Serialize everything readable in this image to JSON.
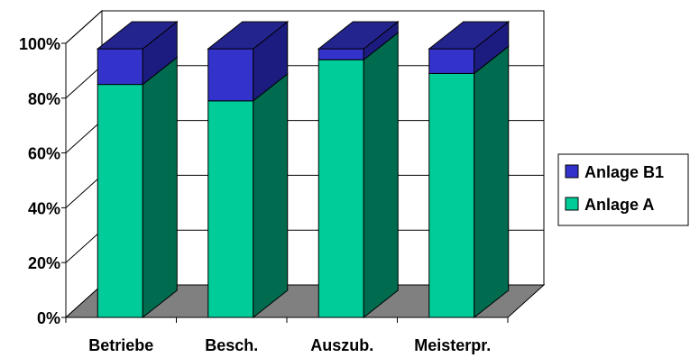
{
  "chart_data": {
    "type": "bar",
    "stacked": "percent",
    "three_d": true,
    "categories": [
      "Betriebe",
      "Besch.",
      "Auszub.",
      "Meisterpr."
    ],
    "series": [
      {
        "name": "Anlage A",
        "values": [
          85,
          79,
          94,
          89
        ],
        "color": "#00cc99",
        "side_color": "#006b4e"
      },
      {
        "name": "Anlage B1",
        "values": [
          13,
          19,
          4,
          9
        ],
        "color": "#3333cc",
        "side_color": "#1c1c80"
      }
    ],
    "ylim": [
      0,
      100
    ],
    "yticks": [
      "0%",
      "20%",
      "40%",
      "60%",
      "80%",
      "100%"
    ],
    "title": "",
    "xlabel": "",
    "ylabel": "",
    "grid": true,
    "legend_position": "right",
    "floor_color": "#808080"
  }
}
